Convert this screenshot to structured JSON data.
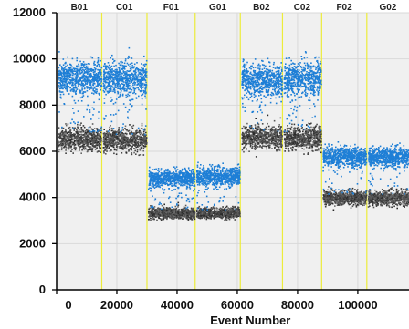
{
  "chart_data": {
    "type": "scatter",
    "title": "",
    "xlabel": "Event Number",
    "ylabel": "",
    "xlim": [
      0,
      117000
    ],
    "ylim": [
      0,
      12000
    ],
    "x_ticks": [
      0,
      20000,
      40000,
      60000,
      80000,
      100000
    ],
    "x_tick_labels": [
      "0",
      "20000",
      "40000",
      "60000",
      "80000",
      "100000"
    ],
    "y_ticks": [
      0,
      2000,
      4000,
      6000,
      8000,
      10000,
      12000
    ],
    "y_tick_labels": [
      "0",
      "2000",
      "4000",
      "6000",
      "8000",
      "10000",
      "12000"
    ],
    "grid": true,
    "well_boundaries": [
      15000,
      30000,
      46000,
      61000,
      75000,
      88000,
      103000
    ],
    "wells": [
      {
        "label": "B01",
        "x_start": 0,
        "x_end": 15000,
        "positive_mean": 9200,
        "positive_spread": 350,
        "negative_mean": 6550,
        "negative_spread": 250
      },
      {
        "label": "C01",
        "x_start": 15000,
        "x_end": 30000,
        "positive_mean": 9150,
        "positive_spread": 380,
        "negative_mean": 6500,
        "negative_spread": 250
      },
      {
        "label": "F01",
        "x_start": 30000,
        "x_end": 46000,
        "positive_mean": 4850,
        "positive_spread": 180,
        "negative_mean": 3350,
        "negative_spread": 120
      },
      {
        "label": "G01",
        "x_start": 46000,
        "x_end": 61000,
        "positive_mean": 4950,
        "positive_spread": 200,
        "negative_mean": 3350,
        "negative_spread": 120
      },
      {
        "label": "B02",
        "x_start": 61000,
        "x_end": 75000,
        "positive_mean": 9100,
        "positive_spread": 330,
        "negative_mean": 6650,
        "negative_spread": 250
      },
      {
        "label": "C02",
        "x_start": 75000,
        "x_end": 88000,
        "positive_mean": 9150,
        "positive_spread": 380,
        "negative_mean": 6600,
        "negative_spread": 250
      },
      {
        "label": "F02",
        "x_start": 88000,
        "x_end": 103000,
        "positive_mean": 5800,
        "positive_spread": 200,
        "negative_mean": 4000,
        "negative_spread": 150
      },
      {
        "label": "G02",
        "x_start": 103000,
        "x_end": 117000,
        "positive_mean": 5800,
        "positive_spread": 200,
        "negative_mean": 4000,
        "negative_spread": 150
      }
    ],
    "series": [
      {
        "category": "positive",
        "color": "#1e7fd6"
      },
      {
        "category": "negative",
        "color": "#2a2a2a"
      }
    ],
    "colors": {
      "plot_background": "#f0f0f0",
      "grid": "#d9d9d9",
      "boundary": "#ecec3a",
      "axis": "#000000"
    }
  }
}
